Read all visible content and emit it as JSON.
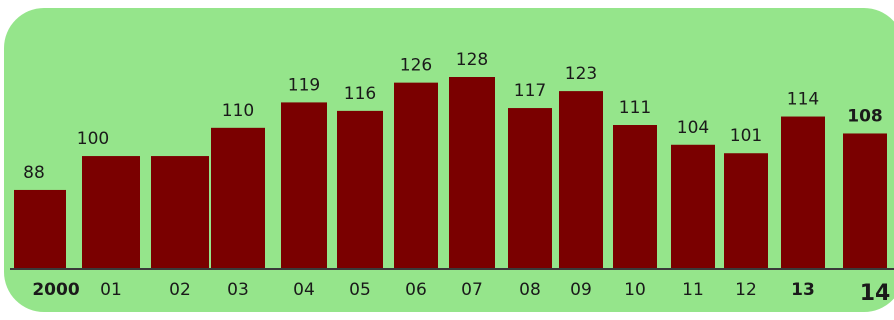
{
  "chart_data": {
    "type": "bar",
    "categories": [
      "2000",
      "01",
      "02",
      "03",
      "04",
      "05",
      "06",
      "07",
      "08",
      "09",
      "10",
      "11",
      "12",
      "13",
      "14"
    ],
    "values": [
      88,
      100,
      100,
      110,
      119,
      116,
      126,
      128,
      117,
      123,
      111,
      104,
      101,
      114,
      108
    ],
    "value_labels": [
      "88",
      "100",
      "",
      "110",
      "119",
      "116",
      "126",
      "128",
      "117",
      "123",
      "111",
      "104",
      "101",
      "114",
      "108"
    ],
    "bold_categories": [
      "2000",
      "13",
      "14"
    ],
    "bold_value_labels": [
      "108"
    ],
    "title": "",
    "xlabel": "",
    "ylabel": "",
    "ylim": [
      0,
      128
    ],
    "grid": false,
    "legend": "none",
    "colors": {
      "bar": "#7a0000",
      "background": "#95e58b",
      "baseline": "#3a3a3a"
    }
  }
}
